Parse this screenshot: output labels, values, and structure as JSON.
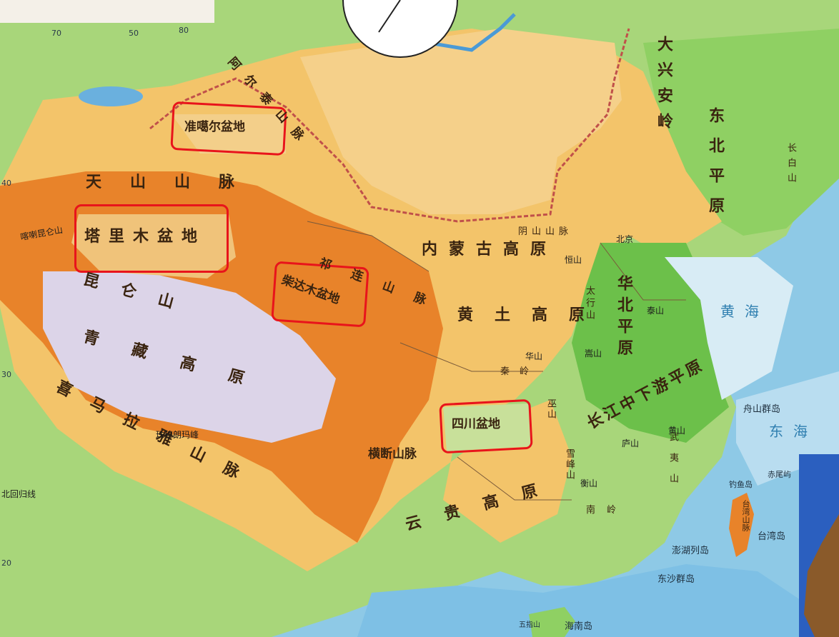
{
  "colors": {
    "sea": "#8ec9e6",
    "plain": "#7ec95a",
    "hills": "#f1b85a",
    "mountain": "#e8832a",
    "plateau": "#dcd4e8",
    "highlight": "#e8141b"
  },
  "highlighted_basins": [
    {
      "name": "准噶尔盆地"
    },
    {
      "name": "塔里木盆地"
    },
    {
      "name": "柴达木盆地"
    },
    {
      "name": "四川盆地"
    }
  ],
  "labels": {
    "altai": "阿尔泰山脉",
    "tianshan": "天山山脉",
    "kunlun": "昆仑山",
    "qinghai_tibet": "青藏高原",
    "qilian": "祁连山脉",
    "himalaya": "喜马拉雅山脉",
    "hengduan": "横断山脉",
    "inner_mongolia": "内蒙古高原",
    "loess": "黄土高原",
    "yungui": "云贵高原",
    "da_xingan": "大兴安岭",
    "dongbei_plain": "东北平原",
    "changbai": "长白山",
    "huabei_plain": "华北平原",
    "yinshan": "阴山山脉",
    "taihang": "太行山",
    "qinling": "秦岭",
    "changjiang_plain": "长江中下游平原",
    "wuyi": "武夷山",
    "nanling": "南岭",
    "xuefeng": "雪峰山",
    "wushan": "巫山",
    "taiwan_shan": "台湾山脉"
  },
  "small_labels": {
    "beijing": "北京",
    "karakoram": "喀喇昆仑山",
    "everest": "珠穆朗玛峰",
    "taishan": "泰山",
    "songshan": "嵩山",
    "huashan": "华山",
    "hengshan": "恒山",
    "huangshan": "黄山",
    "lushan": "庐山",
    "hengshan_s": "衡山",
    "beihui": "北回归线"
  },
  "seas": {
    "huanghai": "黄海",
    "donghai": "东海"
  },
  "islands": {
    "zhoushan": "舟山群岛",
    "diaoyu": "钓鱼岛",
    "chiwei": "赤尾屿",
    "taiwan": "台湾岛",
    "penghu": "澎湖列岛",
    "dongsha": "东沙群岛",
    "hainan": "海南岛",
    "wuzhi": "五指山"
  },
  "ticks": {
    "t70": "70",
    "t50": "50",
    "t80": "80",
    "lat40": "40",
    "lat30": "30",
    "lat20": "20"
  }
}
